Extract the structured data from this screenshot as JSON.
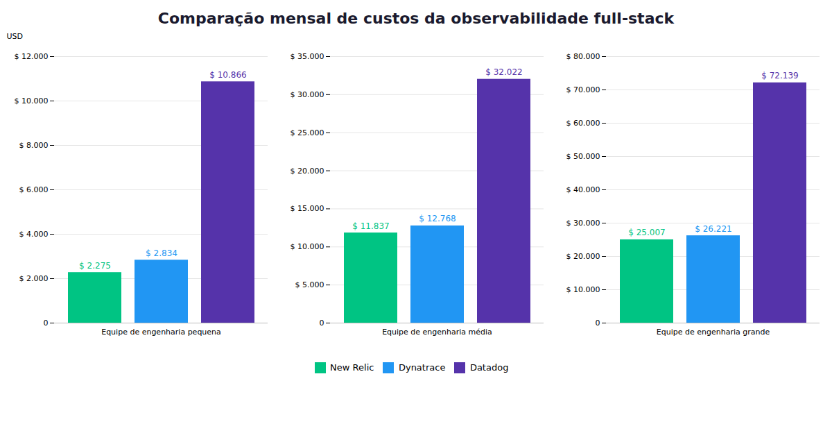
{
  "chart_data": [
    {
      "type": "bar",
      "title": "Comparação mensal de custos da observabilidade full-stack",
      "ylabel": "USD",
      "categories": [
        "Equipe de engenharia pequena"
      ],
      "series": [
        {
          "name": "New Relic",
          "color": "#00c483",
          "values": [
            2275
          ],
          "value_labels": [
            "$ 2.275"
          ]
        },
        {
          "name": "Dynatrace",
          "color": "#2196f3",
          "values": [
            2834
          ],
          "value_labels": [
            "$ 2.834"
          ]
        },
        {
          "name": "Datadog",
          "color": "#5533aa",
          "values": [
            10866
          ],
          "value_labels": [
            "$ 10.866"
          ]
        }
      ],
      "ylim": [
        0,
        12000
      ],
      "yticks": [
        0,
        {
          "value": 2000,
          "label": "$ 2.000"
        },
        {
          "value": 4000,
          "label": "$ 4.000"
        },
        {
          "value": 6000,
          "label": "$ 6.000"
        },
        {
          "value": 8000,
          "label": "$ 8.000"
        },
        {
          "value": 10000,
          "label": "$ 10.000"
        },
        {
          "value": 12000,
          "label": "$ 12.000"
        }
      ],
      "grid": true,
      "data_labels": true,
      "legend": "bottom"
    },
    {
      "type": "bar",
      "categories": [
        "Equipe de engenharia média"
      ],
      "series": [
        {
          "name": "New Relic",
          "color": "#00c483",
          "values": [
            11837
          ],
          "value_labels": [
            "$ 11.837"
          ]
        },
        {
          "name": "Dynatrace",
          "color": "#2196f3",
          "values": [
            12768
          ],
          "value_labels": [
            "$ 12.768"
          ]
        },
        {
          "name": "Datadog",
          "color": "#5533aa",
          "values": [
            32022
          ],
          "value_labels": [
            "$ 32.022"
          ]
        }
      ],
      "ylim": [
        0,
        35000
      ],
      "yticks": [
        0,
        {
          "value": 5000,
          "label": "$ 5.000"
        },
        {
          "value": 10000,
          "label": "$ 10.000"
        },
        {
          "value": 15000,
          "label": "$ 15.000"
        },
        {
          "value": 20000,
          "label": "$ 20.000"
        },
        {
          "value": 25000,
          "label": "$ 25.000"
        },
        {
          "value": 30000,
          "label": "$ 30.000"
        },
        {
          "value": 35000,
          "label": "$ 35.000"
        }
      ],
      "grid": true,
      "data_labels": true
    },
    {
      "type": "bar",
      "categories": [
        "Equipe de engenharia grande"
      ],
      "series": [
        {
          "name": "New Relic",
          "color": "#00c483",
          "values": [
            25007
          ],
          "value_labels": [
            "$ 25.007"
          ]
        },
        {
          "name": "Dynatrace",
          "color": "#2196f3",
          "values": [
            26221
          ],
          "value_labels": [
            "$ 26.221"
          ]
        },
        {
          "name": "Datadog",
          "color": "#5533aa",
          "values": [
            72139
          ],
          "value_labels": [
            "$ 72.139"
          ]
        }
      ],
      "ylim": [
        0,
        80000
      ],
      "yticks": [
        0,
        {
          "value": 10000,
          "label": "$ 10.000"
        },
        {
          "value": 20000,
          "label": "$ 20.000"
        },
        {
          "value": 30000,
          "label": "$ 30.000"
        },
        {
          "value": 40000,
          "label": "$ 40.000"
        },
        {
          "value": 50000,
          "label": "$ 50.000"
        },
        {
          "value": 60000,
          "label": "$ 60.000"
        },
        {
          "value": 70000,
          "label": "$ 70.000"
        },
        {
          "value": 80000,
          "label": "$ 80.000"
        }
      ],
      "grid": true,
      "data_labels": true
    }
  ]
}
